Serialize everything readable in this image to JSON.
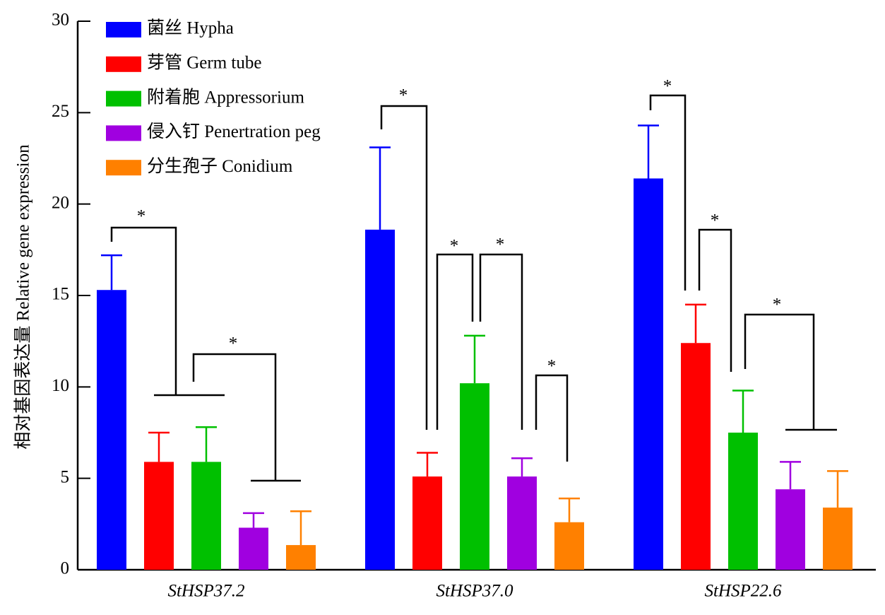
{
  "chart_data": {
    "type": "bar",
    "y_label": "相对基因表达量 Relative gene expression",
    "categories": [
      "StHSP37.2",
      "StHSP37.0",
      "StHSP22.6"
    ],
    "series": [
      {
        "name": "菌丝 Hypha",
        "color": "#0000ff",
        "values": [
          15.3,
          18.6,
          21.4
        ],
        "errors": [
          1.9,
          4.5,
          2.9
        ]
      },
      {
        "name": "芽管 Germ tube",
        "color": "#ff0000",
        "values": [
          5.9,
          5.1,
          12.4
        ],
        "errors": [
          1.6,
          1.3,
          2.1
        ]
      },
      {
        "name": "附着胞 Appressorium",
        "color": "#00c000",
        "values": [
          5.9,
          10.2,
          7.5
        ],
        "errors": [
          1.9,
          2.6,
          2.3
        ]
      },
      {
        "name": "侵入钉 Penertration peg",
        "color": "#a000e0",
        "values": [
          2.3,
          5.1,
          4.4
        ],
        "errors": [
          0.8,
          1.0,
          1.5
        ]
      },
      {
        "name": "分生孢子 Conidium",
        "color": "#ff8000",
        "values": [
          1.35,
          2.6,
          3.4
        ],
        "errors": [
          1.85,
          1.3,
          2.0
        ]
      }
    ],
    "ylim": [
      0,
      30
    ],
    "yticks": [
      0,
      5,
      10,
      15,
      20,
      25,
      30
    ],
    "annotations": [
      "*",
      "*",
      "*",
      "*",
      "*",
      "*",
      "*",
      "*",
      "*"
    ]
  }
}
